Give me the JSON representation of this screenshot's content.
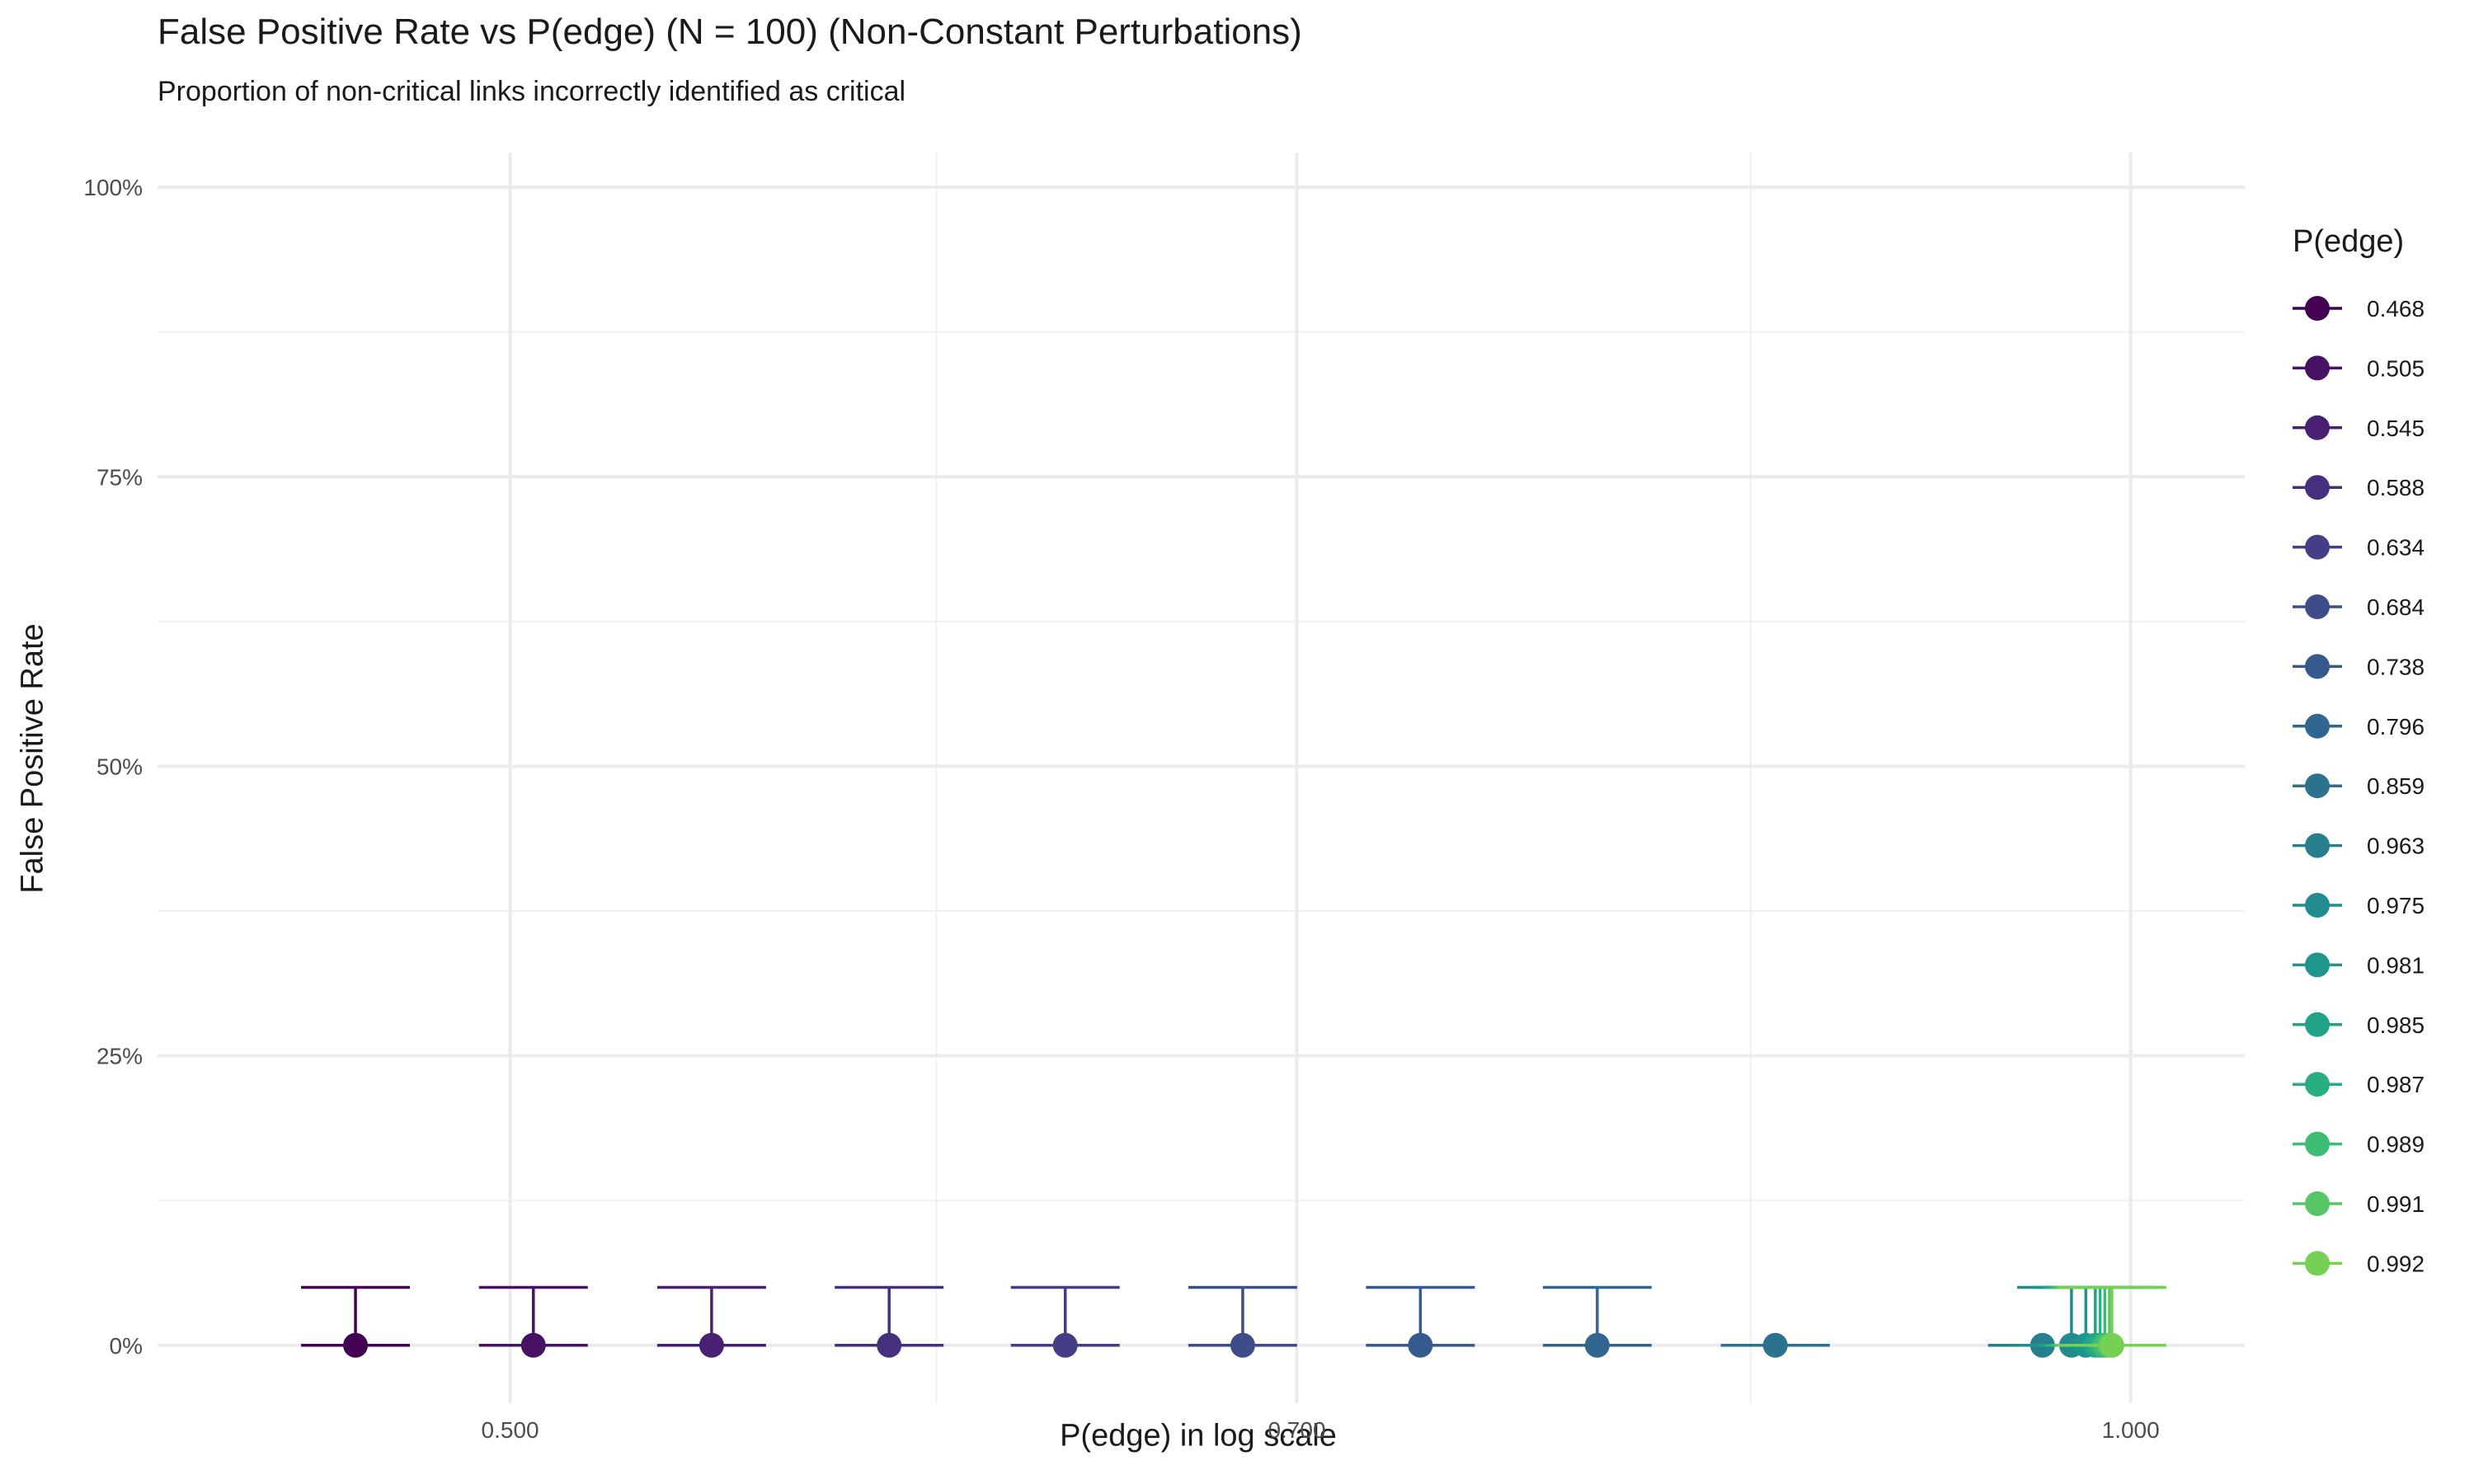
{
  "chart_data": {
    "type": "scatter",
    "title": "False Positive Rate vs P(edge) (N = 100) (Non-Constant Perturbations)",
    "subtitle": "Proportion of non-critical links incorrectly identified as critical",
    "xlabel": "P(edge) in log scale",
    "ylabel": "False Positive Rate",
    "x_scale": "log",
    "xlim": [
      0.43,
      1.05
    ],
    "ylim": [
      -0.05,
      1.03
    ],
    "x_ticks": [
      {
        "value": 0.5,
        "label": "0.500"
      },
      {
        "value": 0.7,
        "label": "0.700"
      },
      {
        "value": 1.0,
        "label": "1.000"
      }
    ],
    "x_minor_ticks": [
      0.6,
      0.85
    ],
    "y_ticks": [
      {
        "value": 0,
        "label": "0%"
      },
      {
        "value": 0.25,
        "label": "25%"
      },
      {
        "value": 0.5,
        "label": "50%"
      },
      {
        "value": 0.75,
        "label": "75%"
      },
      {
        "value": 1.0,
        "label": "100%"
      }
    ],
    "y_minor_ticks": [
      0.125,
      0.375,
      0.625,
      0.875
    ],
    "grid": true,
    "legend_title": "P(edge)",
    "legend_position": "right",
    "series": [
      {
        "name": "0.468",
        "x": 0.468,
        "y": 0,
        "ymin": 0,
        "ymax": 0.05,
        "color": "#440154"
      },
      {
        "name": "0.505",
        "x": 0.505,
        "y": 0,
        "ymin": 0,
        "ymax": 0.05,
        "color": "#471264"
      },
      {
        "name": "0.545",
        "x": 0.545,
        "y": 0,
        "ymin": 0,
        "ymax": 0.05,
        "color": "#482172"
      },
      {
        "name": "0.588",
        "x": 0.588,
        "y": 0,
        "ymin": 0,
        "ymax": 0.05,
        "color": "#46307e"
      },
      {
        "name": "0.634",
        "x": 0.634,
        "y": 0,
        "ymin": 0,
        "ymax": 0.05,
        "color": "#433e85"
      },
      {
        "name": "0.684",
        "x": 0.684,
        "y": 0,
        "ymin": 0,
        "ymax": 0.05,
        "color": "#3d4d8a"
      },
      {
        "name": "0.738",
        "x": 0.738,
        "y": 0,
        "ymin": 0,
        "ymax": 0.05,
        "color": "#375a8c"
      },
      {
        "name": "0.796",
        "x": 0.796,
        "y": 0,
        "ymin": 0,
        "ymax": 0.05,
        "color": "#31678e"
      },
      {
        "name": "0.859",
        "x": 0.859,
        "y": 0,
        "ymin": 0,
        "ymax": 0,
        "color": "#2c728e"
      },
      {
        "name": "0.963",
        "x": 0.963,
        "y": 0,
        "ymin": 0,
        "ymax": 0,
        "color": "#277f8e"
      },
      {
        "name": "0.975",
        "x": 0.975,
        "y": 0,
        "ymin": 0,
        "ymax": 0.05,
        "color": "#228b8d"
      },
      {
        "name": "0.981",
        "x": 0.981,
        "y": 0,
        "ymin": 0,
        "ymax": 0.05,
        "color": "#1f968b"
      },
      {
        "name": "0.985",
        "x": 0.985,
        "y": 0,
        "ymin": 0,
        "ymax": 0.05,
        "color": "#20a386"
      },
      {
        "name": "0.987",
        "x": 0.987,
        "y": 0,
        "ymin": 0,
        "ymax": 0.05,
        "color": "#29af7f"
      },
      {
        "name": "0.989",
        "x": 0.989,
        "y": 0,
        "ymin": 0,
        "ymax": 0.05,
        "color": "#3dbc74"
      },
      {
        "name": "0.991",
        "x": 0.991,
        "y": 0,
        "ymin": 0,
        "ymax": 0.05,
        "color": "#56c667"
      },
      {
        "name": "0.992",
        "x": 0.992,
        "y": 0,
        "ymin": 0,
        "ymax": 0.05,
        "color": "#75d054"
      }
    ]
  }
}
